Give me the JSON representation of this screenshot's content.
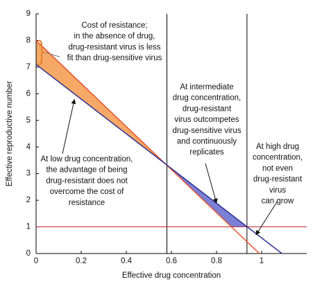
{
  "chart_data": {
    "type": "line",
    "xlabel": "Effective drug concentration",
    "ylabel": "Effective reproductive number",
    "xlim": [
      0,
      1.2
    ],
    "ylim": [
      0,
      9
    ],
    "xticks": [
      0,
      0.2,
      0.4,
      0.6,
      0.8,
      1
    ],
    "yticks": [
      0,
      1,
      2,
      3,
      4,
      5,
      6,
      7,
      8,
      9
    ],
    "series": [
      {
        "color": "#e8502a",
        "x": [
          0,
          0.99
        ],
        "values": [
          8,
          0
        ]
      },
      {
        "color": "#2b2f8f",
        "x": [
          0,
          1.09
        ],
        "values": [
          7.1,
          0
        ]
      }
    ],
    "vlines": [
      0.58,
      0.935
    ],
    "vline_color": "#000000",
    "hline": 1,
    "hline_color": "#c0282d",
    "fill_colors": [
      "#f6a866",
      "#7b7fd6"
    ],
    "annotations": [
      [
        "Cost of resistance;",
        "in the absence of drug,",
        "drug-resistant virus is less",
        "fit than drug-sensitive virus"
      ],
      [
        "At low drug concentration,",
        "the advantage of being",
        "drug-resistant does not",
        "overcome the cost of",
        "resistance"
      ],
      [
        "At intermediate",
        "drug concentration,",
        "drug-resistant",
        "virus outcompetes",
        "drug-sensitive virus",
        "and continuously",
        "replicates"
      ],
      [
        "At high drug",
        "concentration,",
        "not even",
        "drug-resistant",
        "virus",
        "can grow"
      ]
    ]
  }
}
